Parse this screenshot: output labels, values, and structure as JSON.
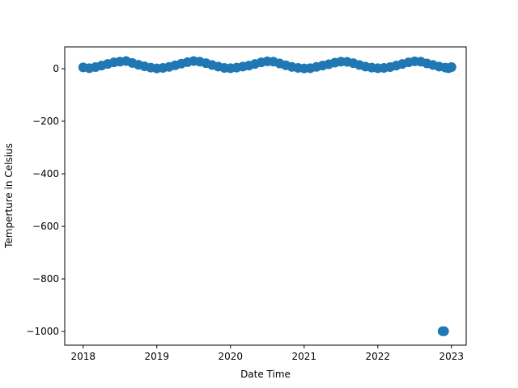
{
  "chart_data": {
    "type": "scatter",
    "xlabel": "Date Time",
    "ylabel": "Temperture in Celsius",
    "x": [
      2018,
      2018.083,
      2018.167,
      2018.25,
      2018.333,
      2018.417,
      2018.5,
      2018.583,
      2018.667,
      2018.75,
      2018.833,
      2018.917,
      2019,
      2019.083,
      2019.167,
      2019.25,
      2019.333,
      2019.417,
      2019.5,
      2019.583,
      2019.667,
      2019.75,
      2019.833,
      2019.917,
      2020,
      2020.083,
      2020.167,
      2020.25,
      2020.333,
      2020.417,
      2020.5,
      2020.583,
      2020.667,
      2020.75,
      2020.833,
      2020.917,
      2021,
      2021.083,
      2021.167,
      2021.25,
      2021.333,
      2021.417,
      2021.5,
      2021.583,
      2021.667,
      2021.75,
      2021.833,
      2021.917,
      2022,
      2022.083,
      2022.167,
      2022.25,
      2022.333,
      2022.417,
      2022.5,
      2022.583,
      2022.667,
      2022.75,
      2022.833,
      2022.88,
      2022.9,
      2022.917,
      2022.96,
      2023
    ],
    "values": [
      5,
      2,
      6,
      12,
      18,
      24,
      27,
      29,
      22,
      15,
      9,
      4,
      1,
      3,
      7,
      13,
      19,
      25,
      29,
      27,
      21,
      14,
      8,
      3,
      2,
      4,
      8,
      12,
      18,
      24,
      28,
      27,
      20,
      13,
      7,
      3,
      1,
      2,
      7,
      12,
      17,
      23,
      27,
      26,
      21,
      14,
      8,
      4,
      2,
      3,
      6,
      12,
      18,
      24,
      28,
      27,
      20,
      14,
      8,
      -999,
      -999,
      4,
      2,
      6
    ],
    "color": "#1f77b4",
    "xlim": [
      2017.75,
      2023.2
    ],
    "xticks": [
      2018,
      2019,
      2020,
      2021,
      2022,
      2023
    ],
    "ylim": [
      -1052,
      83
    ],
    "yticks": [
      {
        "value": -1000,
        "label": "−1000"
      },
      {
        "value": -800,
        "label": "−800"
      },
      {
        "value": -600,
        "label": "−600"
      },
      {
        "value": -400,
        "label": "−400"
      },
      {
        "value": -200,
        "label": "−200"
      },
      0
    ]
  }
}
